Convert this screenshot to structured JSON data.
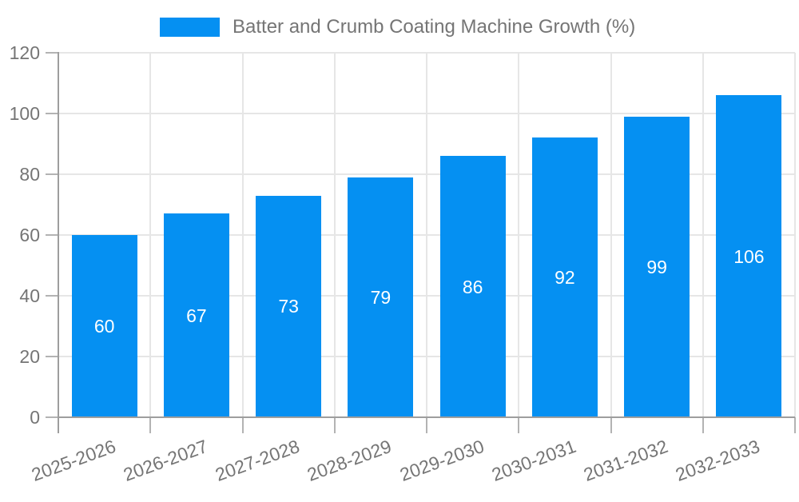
{
  "chart_data": {
    "type": "bar",
    "legend": "Batter and Crumb Coating Machine Growth (%)",
    "legend_position": "top",
    "categories": [
      "2025-2026",
      "2026-2027",
      "2027-2028",
      "2028-2029",
      "2029-2030",
      "2030-2031",
      "2031-2032",
      "2032-2033"
    ],
    "values": [
      60,
      67,
      73,
      79,
      86,
      92,
      99,
      106
    ],
    "ylim": [
      0,
      120
    ],
    "yticks": [
      0,
      20,
      40,
      60,
      80,
      100,
      120
    ],
    "grid": true,
    "bar_color": "#0590f2",
    "bar_label_color": "#ffffff",
    "grid_color": "#e6e6e6",
    "axis_color": "#9e9e9e",
    "tick_color": "#b3b3b3",
    "text_color": "#757575",
    "background": "#ffffff"
  }
}
